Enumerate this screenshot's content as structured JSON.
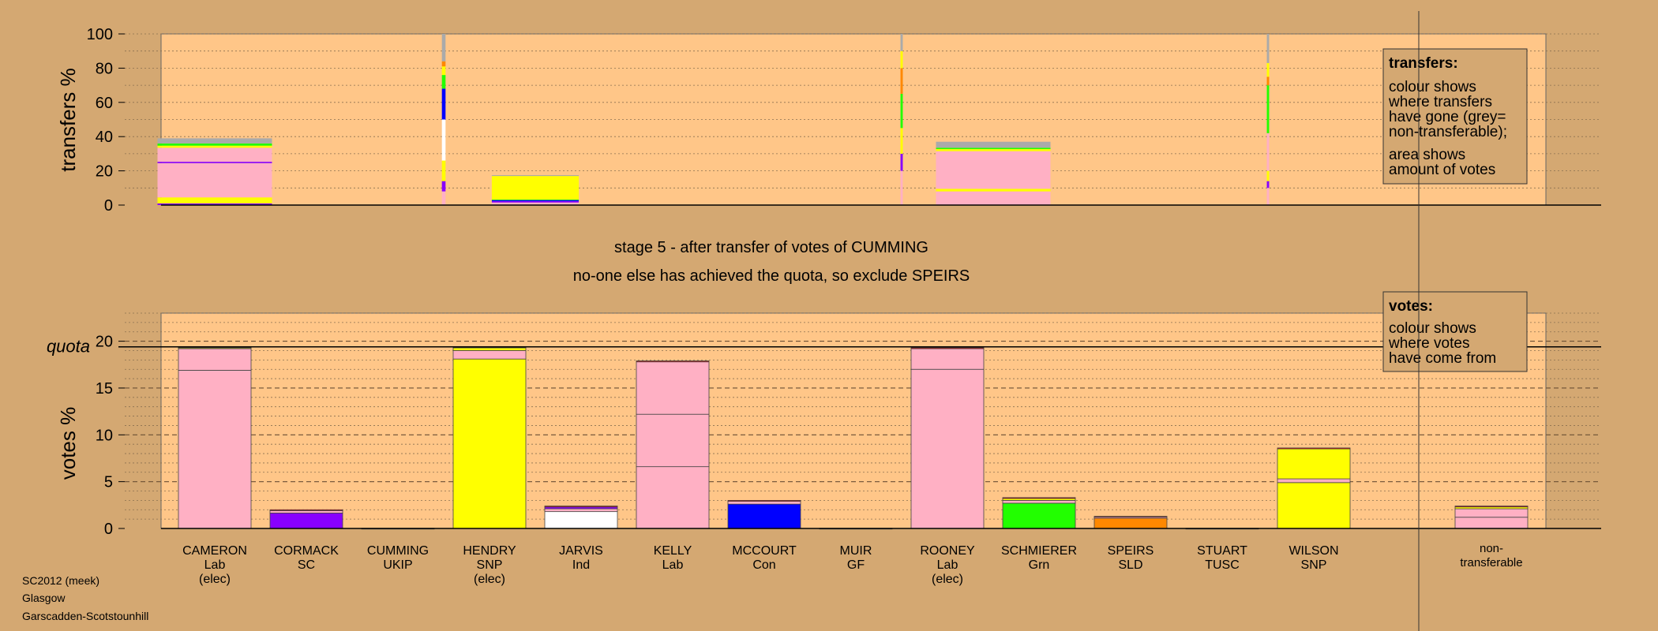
{
  "colors": {
    "background": "#d4a872",
    "plot_area": "#ffc688",
    "non_transferable": "#aaaaaa",
    "Lab": "#ffb0c4",
    "SNP": "#ffff00",
    "SC": "#8800ff",
    "UKIP": "#ffffff",
    "Ind": "#ffffff",
    "Con": "#0000ff",
    "GF": "#cccccc",
    "Grn": "#22ff00",
    "SLD": "#ff8800",
    "TUSC": "#ff0000"
  },
  "stage_text": {
    "line1": "stage 5 - after transfer of votes of CUMMING",
    "line2": "no-one else has achieved the quota, so exclude SPEIRS"
  },
  "transfers_box": {
    "title": "transfers:",
    "line1": "colour shows",
    "line2": "where transfers",
    "line3": "have gone (grey=",
    "line4": "non-transferable);",
    "line5": "area shows",
    "line6": "amount of votes"
  },
  "votes_box": {
    "title": "votes:",
    "line1": "colour shows",
    "line2": "where votes",
    "line3": "have come from"
  },
  "footer": {
    "line1": "SC2012 (meek)",
    "line2": "Glasgow",
    "line3": "Garscadden-Scotstounhill"
  },
  "chart_data": [
    {
      "type": "bar",
      "name": "transfers",
      "ylabel": "transfers %",
      "ylim": [
        0,
        100
      ],
      "yticks": [
        0,
        20,
        40,
        60,
        80,
        100
      ],
      "grid": true,
      "note": "stacked transfer shares from earlier stages; bar width shows amount of votes",
      "bars": [
        {
          "pos": 1.0,
          "width": 1.25,
          "segments": [
            {
              "party": "SC",
              "value": 1
            },
            {
              "party": "SNP",
              "value": 3.5
            },
            {
              "party": "Lab",
              "value": 20
            },
            {
              "party": "SC",
              "value": 0.8
            },
            {
              "party": "Lab",
              "value": 8.2
            },
            {
              "party": "SNP",
              "value": 1.2
            },
            {
              "party": "Grn",
              "value": 1.3
            },
            {
              "party": "non_transferable",
              "value": 3
            }
          ]
        },
        {
          "pos": 3.5,
          "width": 0.04,
          "segments": [
            {
              "party": "Lab",
              "value": 8
            },
            {
              "party": "SC",
              "value": 6
            },
            {
              "party": "SNP",
              "value": 12
            },
            {
              "party": "UKIP",
              "value": 24
            },
            {
              "party": "Con",
              "value": 18
            },
            {
              "party": "Grn",
              "value": 8
            },
            {
              "party": "SNP",
              "value": 5
            },
            {
              "party": "SLD",
              "value": 3
            },
            {
              "party": "non_transferable",
              "value": 16
            }
          ]
        },
        {
          "pos": 4.5,
          "width": 0.95,
          "segments": [
            {
              "party": "Lab",
              "value": 1.5
            },
            {
              "party": "SC",
              "value": 0.8
            },
            {
              "party": "Con",
              "value": 0.6
            },
            {
              "party": "Grn",
              "value": 0.4
            },
            {
              "party": "SNP",
              "value": 13.7
            },
            {
              "party": "non_transferable",
              "value": 0.5
            }
          ]
        },
        {
          "pos": 8.5,
          "width": 0.025,
          "segments": [
            {
              "party": "Lab",
              "value": 20
            },
            {
              "party": "SC",
              "value": 10
            },
            {
              "party": "SNP",
              "value": 15
            },
            {
              "party": "Grn",
              "value": 20
            },
            {
              "party": "SLD",
              "value": 15
            },
            {
              "party": "SNP",
              "value": 10
            },
            {
              "party": "non_transferable",
              "value": 10
            }
          ]
        },
        {
          "pos": 9.5,
          "width": 1.25,
          "segments": [
            {
              "party": "Lab",
              "value": 8
            },
            {
              "party": "SNP",
              "value": 1.5
            },
            {
              "party": "Lab",
              "value": 22
            },
            {
              "party": "SNP",
              "value": 1.2
            },
            {
              "party": "Grn",
              "value": 0.8
            },
            {
              "party": "non_transferable",
              "value": 3.5
            }
          ]
        },
        {
          "pos": 12.5,
          "width": 0.025,
          "segments": [
            {
              "party": "Lab",
              "value": 10
            },
            {
              "party": "SC",
              "value": 4
            },
            {
              "party": "SNP",
              "value": 6
            },
            {
              "party": "Lab",
              "value": 22
            },
            {
              "party": "Grn",
              "value": 28
            },
            {
              "party": "SLD",
              "value": 5
            },
            {
              "party": "SNP",
              "value": 8
            },
            {
              "party": "non_transferable",
              "value": 17
            }
          ]
        }
      ]
    },
    {
      "type": "bar",
      "name": "votes",
      "ylabel": "votes %",
      "ylim": [
        0,
        23
      ],
      "yticks": [
        0,
        5,
        10,
        15,
        20
      ],
      "quota": 19.4,
      "quota_label": "quota",
      "grid": true,
      "categories": [
        {
          "name": "CAMERON",
          "party": "Lab",
          "elec": "(elec)"
        },
        {
          "name": "CORMACK",
          "party": "SC",
          "elec": ""
        },
        {
          "name": "CUMMING",
          "party": "UKIP",
          "elec": ""
        },
        {
          "name": "HENDRY",
          "party": "SNP",
          "elec": "(elec)"
        },
        {
          "name": "JARVIS",
          "party": "Ind",
          "elec": ""
        },
        {
          "name": "KELLY",
          "party": "Lab",
          "elec": ""
        },
        {
          "name": "MCCOURT",
          "party": "Con",
          "elec": ""
        },
        {
          "name": "MUIR",
          "party": "GF",
          "elec": ""
        },
        {
          "name": "ROONEY",
          "party": "Lab",
          "elec": "(elec)"
        },
        {
          "name": "SCHMIERER",
          "party": "Grn",
          "elec": ""
        },
        {
          "name": "SPEIRS",
          "party": "SLD",
          "elec": ""
        },
        {
          "name": "STUART",
          "party": "TUSC",
          "elec": ""
        },
        {
          "name": "WILSON",
          "party": "SNP",
          "elec": ""
        }
      ],
      "nontransferable_label": {
        "line1": "non-",
        "line2": "transferable"
      },
      "bars": [
        {
          "segments": [
            {
              "party": "Lab",
              "value": 16.9
            },
            {
              "party": "Lab",
              "value": 2.3
            },
            {
              "party": "SNP",
              "value": 0.1
            },
            {
              "party": "TUSC",
              "value": 0.1
            }
          ]
        },
        {
          "segments": [
            {
              "party": "SC",
              "value": 1.65
            },
            {
              "party": "Lab",
              "value": 0.25
            },
            {
              "party": "TUSC",
              "value": 0.1
            }
          ]
        },
        {
          "segments": [
            {
              "party": "UKIP",
              "value": 0.02
            }
          ]
        },
        {
          "segments": [
            {
              "party": "SNP",
              "value": 18.1
            },
            {
              "party": "Lab",
              "value": 0.9
            },
            {
              "party": "SNP",
              "value": 0.3
            },
            {
              "party": "TUSC",
              "value": 0.1
            }
          ]
        },
        {
          "segments": [
            {
              "party": "Ind",
              "value": 1.8
            },
            {
              "party": "Lab",
              "value": 0.3
            },
            {
              "party": "SC",
              "value": 0.2
            },
            {
              "party": "TUSC",
              "value": 0.1
            }
          ]
        },
        {
          "segments": [
            {
              "party": "Lab",
              "value": 6.6
            },
            {
              "party": "Lab",
              "value": 5.6
            },
            {
              "party": "Lab",
              "value": 5.6
            },
            {
              "party": "TUSC",
              "value": 0.1
            }
          ]
        },
        {
          "segments": [
            {
              "party": "Con",
              "value": 2.6
            },
            {
              "party": "Lab",
              "value": 0.3
            },
            {
              "party": "TUSC",
              "value": 0.1
            }
          ]
        },
        {
          "segments": [
            {
              "party": "GF",
              "value": 0.02
            }
          ]
        },
        {
          "segments": [
            {
              "party": "Lab",
              "value": 17
            },
            {
              "party": "Lab",
              "value": 2.2
            },
            {
              "party": "TUSC",
              "value": 0.1
            }
          ]
        },
        {
          "segments": [
            {
              "party": "Grn",
              "value": 2.7
            },
            {
              "party": "Lab",
              "value": 0.3
            },
            {
              "party": "SNP",
              "value": 0.2
            },
            {
              "party": "TUSC",
              "value": 0.1
            }
          ]
        },
        {
          "segments": [
            {
              "party": "SLD",
              "value": 1.1
            },
            {
              "party": "Lab",
              "value": 0.15
            },
            {
              "party": "TUSC",
              "value": 0.05
            }
          ]
        },
        {
          "segments": [
            {
              "party": "TUSC",
              "value": 0.02
            }
          ]
        },
        {
          "segments": [
            {
              "party": "SNP",
              "value": 4.9
            },
            {
              "party": "Lab",
              "value": 0.4
            },
            {
              "party": "SNP",
              "value": 3.2
            },
            {
              "party": "TUSC",
              "value": 0.1
            }
          ]
        }
      ],
      "nontransferable_bar": {
        "segments": [
          {
            "party": "Lab",
            "value": 1.2
          },
          {
            "party": "Lab",
            "value": 0.9
          },
          {
            "party": "SNP",
            "value": 0.2
          },
          {
            "party": "TUSC",
            "value": 0.1
          }
        ]
      }
    }
  ]
}
